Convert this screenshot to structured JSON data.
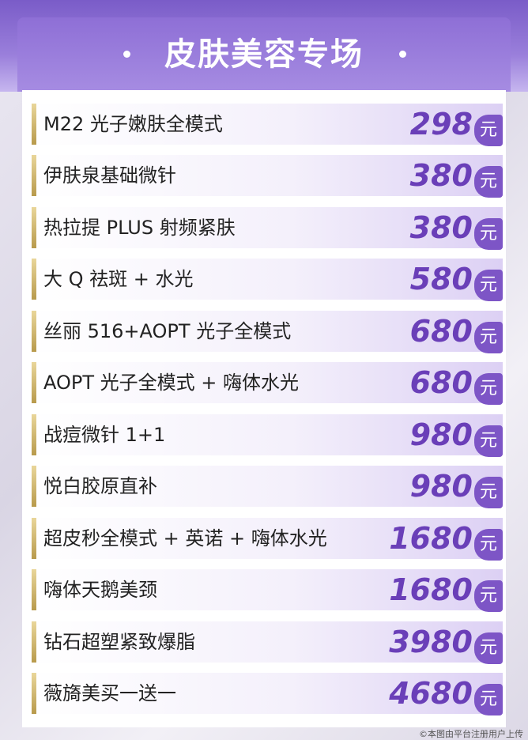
{
  "header": {
    "title": "皮肤美容专场"
  },
  "unit": "元",
  "items": [
    {
      "name": "M22 光子嫩肤全模式",
      "price": 298
    },
    {
      "name": "伊肤泉基础微针",
      "price": 380
    },
    {
      "name": "热拉提 PLUS 射频紧肤",
      "price": 380
    },
    {
      "name": "大 Q 祛斑 + 水光",
      "price": 580
    },
    {
      "name": "丝丽 516+AOPT 光子全模式",
      "price": 680
    },
    {
      "name": "AOPT 光子全模式 + 嗨体水光",
      "price": 680
    },
    {
      "name": "战痘微针 1+1",
      "price": 980
    },
    {
      "name": "悦白胶原直补",
      "price": 980
    },
    {
      "name": "超皮秒全模式 + 英诺 + 嗨体水光",
      "price": 1680
    },
    {
      "name": "嗨体天鹅美颈",
      "price": 1680
    },
    {
      "name": "钻石超塑紧致爆脂",
      "price": 3980
    },
    {
      "name": "薇旖美买一送一",
      "price": 4680
    }
  ],
  "watermark": "©本图由平台注册用户上传"
}
